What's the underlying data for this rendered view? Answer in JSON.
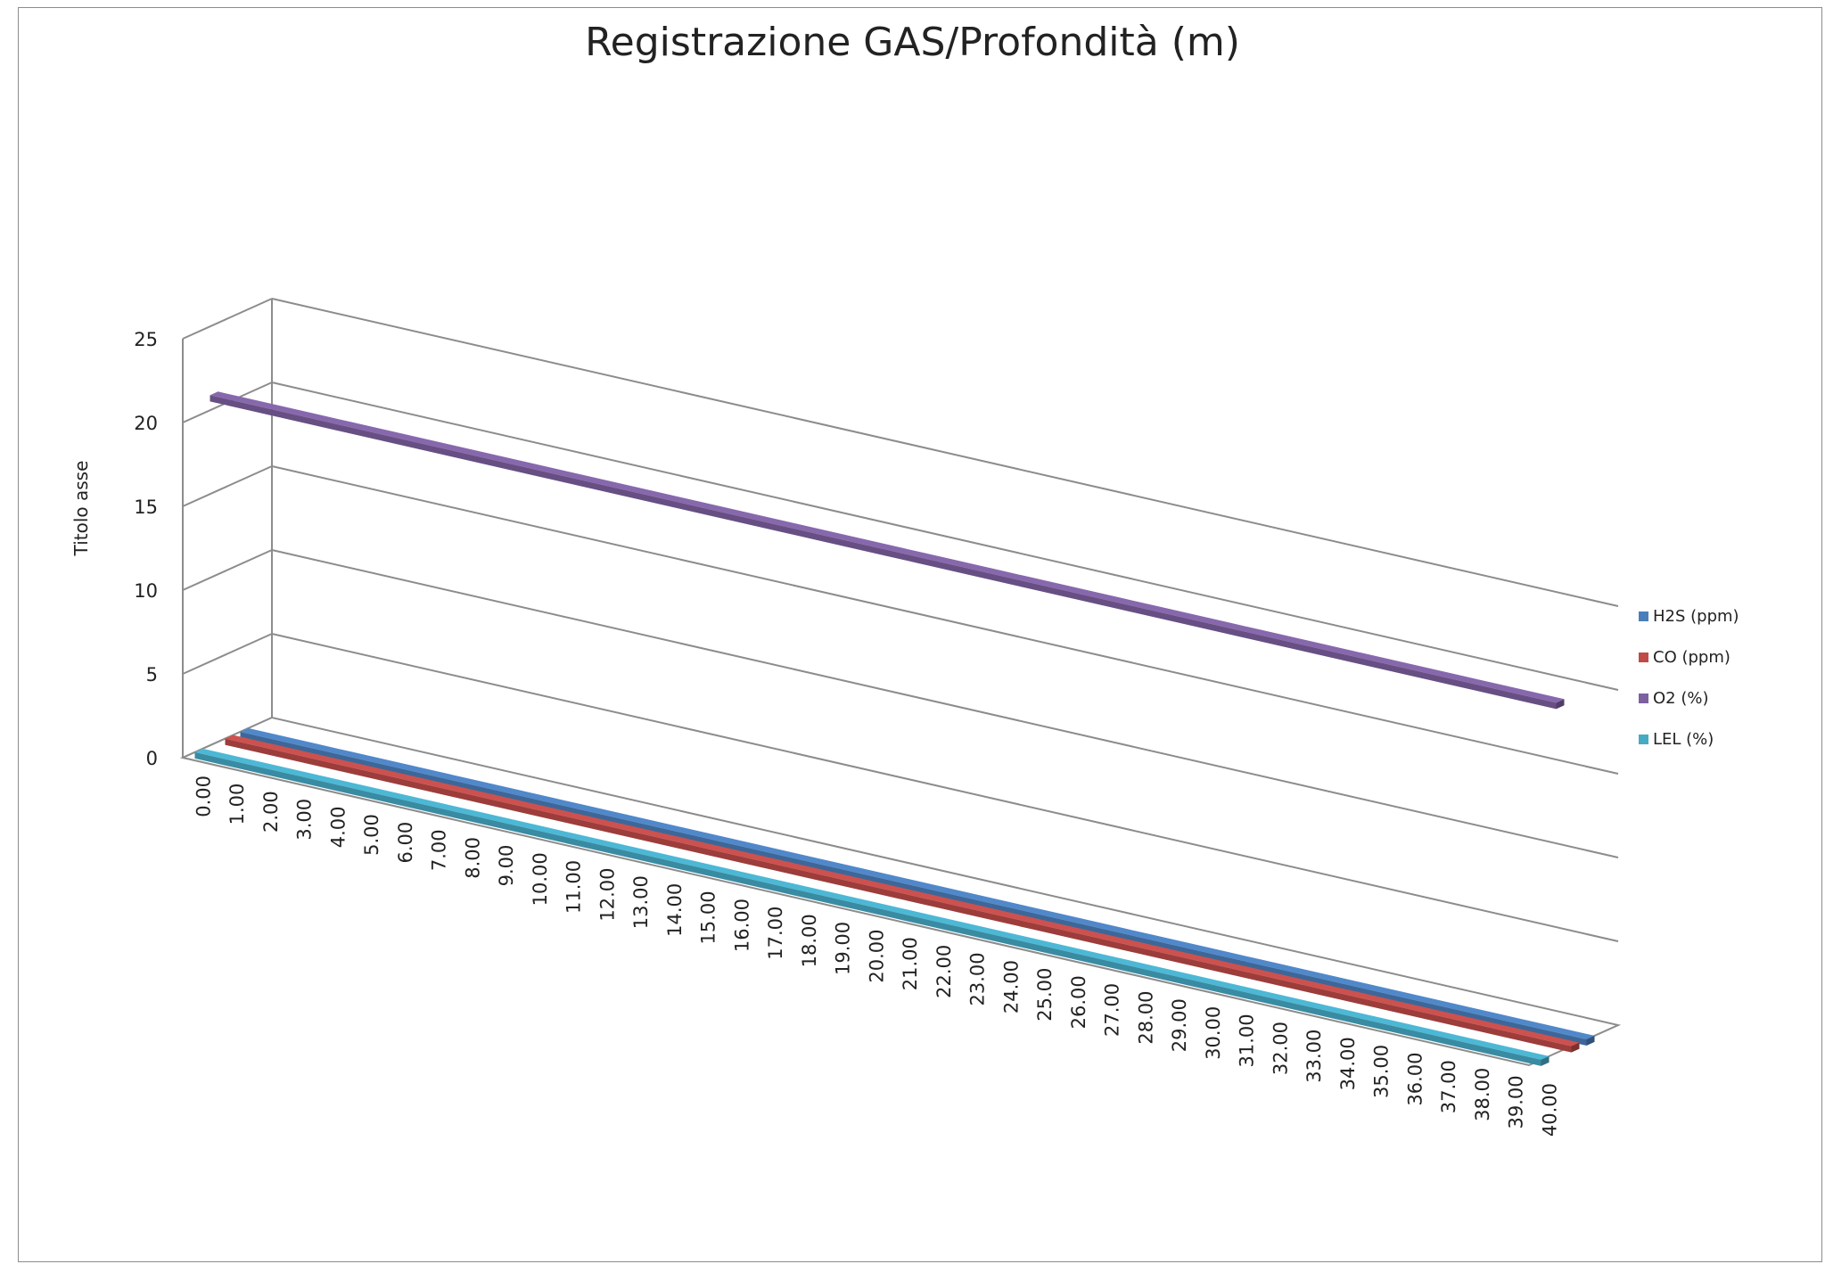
{
  "chart_data": {
    "type": "line",
    "view": "3d",
    "title": "Registrazione GAS/Profondità (m)",
    "ylabel": "Titolo asse",
    "xlabel": "",
    "ylim": [
      0,
      25
    ],
    "y_ticks": [
      0,
      5,
      10,
      15,
      20,
      25
    ],
    "grid": true,
    "legend": "right",
    "categories": [
      "0.00",
      "1.00",
      "2.00",
      "3.00",
      "4.00",
      "5.00",
      "6.00",
      "7.00",
      "8.00",
      "9.00",
      "10.00",
      "11.00",
      "12.00",
      "13.00",
      "14.00",
      "15.00",
      "16.00",
      "17.00",
      "18.00",
      "19.00",
      "20.00",
      "21.00",
      "22.00",
      "23.00",
      "24.00",
      "25.00",
      "26.00",
      "27.00",
      "28.00",
      "29.00",
      "30.00",
      "31.00",
      "32.00",
      "33.00",
      "34.00",
      "35.00",
      "36.00",
      "37.00",
      "38.00",
      "39.00",
      "40.00"
    ],
    "series": [
      {
        "name": "H2S (ppm)",
        "color": "#4a7ebb",
        "values": [
          0,
          0,
          0,
          0,
          0,
          0,
          0,
          0,
          0,
          0,
          0,
          0,
          0,
          0,
          0,
          0,
          0,
          0,
          0,
          0,
          0,
          0,
          0,
          0,
          0,
          0,
          0,
          0,
          0,
          0,
          0,
          0,
          0,
          0,
          0,
          0,
          0,
          0,
          0,
          0,
          0
        ]
      },
      {
        "name": "CO (ppm)",
        "color": "#be4b48",
        "values": [
          0,
          0,
          0,
          0,
          0,
          0,
          0,
          0,
          0,
          0,
          0,
          0,
          0,
          0,
          0,
          0,
          0,
          0,
          0,
          0,
          0,
          0,
          0,
          0,
          0,
          0,
          0,
          0,
          0,
          0,
          0,
          0,
          0,
          0,
          0,
          0,
          0,
          0,
          0,
          0,
          0
        ]
      },
      {
        "name": "O2 (%)",
        "color": "#7d60a0",
        "values": [
          20.9,
          20.9,
          20.9,
          20.9,
          20.9,
          20.9,
          20.9,
          20.9,
          20.9,
          20.9,
          20.9,
          20.9,
          20.9,
          20.9,
          20.9,
          20.9,
          20.9,
          20.9,
          20.9,
          20.9,
          20.9,
          20.9,
          20.9,
          20.9,
          20.9,
          20.9,
          20.9,
          20.9,
          20.9,
          20.9,
          20.9,
          20.9,
          20.9,
          20.9,
          20.9,
          20.9,
          20.9,
          20.9,
          20.9,
          20.9,
          20.9
        ]
      },
      {
        "name": "LEL (%)",
        "color": "#46aac5",
        "values": [
          0,
          0,
          0,
          0,
          0,
          0,
          0,
          0,
          0,
          0,
          0,
          0,
          0,
          0,
          0,
          0,
          0,
          0,
          0,
          0,
          0,
          0,
          0,
          0,
          0,
          0,
          0,
          0,
          0,
          0,
          0,
          0,
          0,
          0,
          0,
          0,
          0,
          0,
          0,
          0,
          0
        ]
      }
    ]
  }
}
